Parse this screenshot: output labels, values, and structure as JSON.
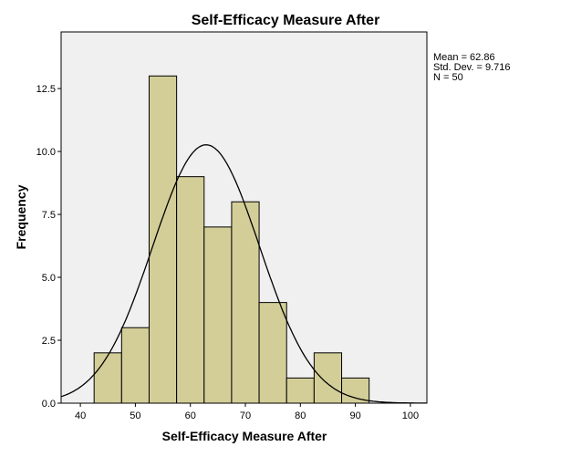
{
  "chart_data": {
    "type": "bar",
    "subtype": "histogram",
    "title": "Self-Efficacy Measure After",
    "xlabel": "Self-Efficacy Measure After",
    "ylabel": "Frequency",
    "bin_edges": [
      42.5,
      47.5,
      52.5,
      57.5,
      62.5,
      67.5,
      72.5,
      77.5,
      82.5,
      87.5,
      92.5
    ],
    "values": [
      2,
      3,
      13,
      9,
      7,
      8,
      4,
      1,
      2,
      1
    ],
    "xlim": [
      36.5,
      103
    ],
    "ylim": [
      0,
      14.75
    ],
    "xticks": [
      "40",
      "50",
      "60",
      "70",
      "80",
      "90",
      "100"
    ],
    "yticks": [
      "0.0",
      "2.5",
      "5.0",
      "7.5",
      "10.0",
      "12.5"
    ],
    "normal_curve": {
      "mean": 62.86,
      "sd": 9.716,
      "n": 50
    },
    "legend": {
      "placement": "right",
      "lines": [
        "Mean = 62.86",
        "Std. Dev. = 9.716",
        "N = 50"
      ]
    },
    "colors": {
      "bar": "#d3ce98",
      "plot_bg": "#f0f0f0",
      "line": "#000000"
    }
  }
}
